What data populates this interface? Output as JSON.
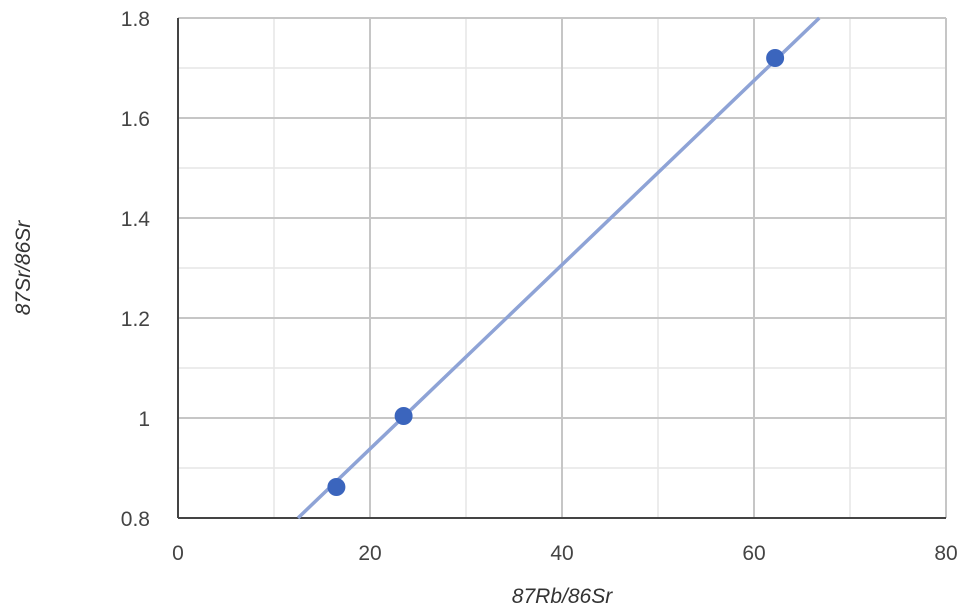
{
  "chart_data": {
    "type": "scatter",
    "xlabel": "87Rb/86Sr",
    "ylabel": "87Sr/86Sr",
    "xlim": [
      0,
      80
    ],
    "ylim": [
      0.8,
      1.8
    ],
    "x_major_ticks": [
      0,
      20,
      40,
      60,
      80
    ],
    "x_tick_labels": [
      "0",
      "20",
      "40",
      "60",
      "80"
    ],
    "x_minor_ticks": [
      10,
      30,
      50,
      70
    ],
    "y_major_ticks": [
      0.8,
      1.0,
      1.2,
      1.4,
      1.6,
      1.8
    ],
    "y_tick_labels": [
      "0.8",
      "1",
      "1.2",
      "1.4",
      "1.6",
      "1.8"
    ],
    "y_minor_ticks": [
      0.9,
      1.1,
      1.3,
      1.5,
      1.7
    ],
    "grid": true,
    "points": [
      {
        "x": 16.5,
        "y": 0.862
      },
      {
        "x": 23.5,
        "y": 1.004
      },
      {
        "x": 62.2,
        "y": 1.72
      }
    ],
    "fit_line": {
      "x_start": 12.5,
      "y_start": 0.8,
      "x_end": 66.8,
      "y_end": 1.8
    },
    "colors": {
      "point": "#3b65bd",
      "line": "#8ea3d6",
      "major_grid": "#c6c6c6",
      "minor_grid": "#e6e6e6",
      "axis": "#444444"
    }
  }
}
